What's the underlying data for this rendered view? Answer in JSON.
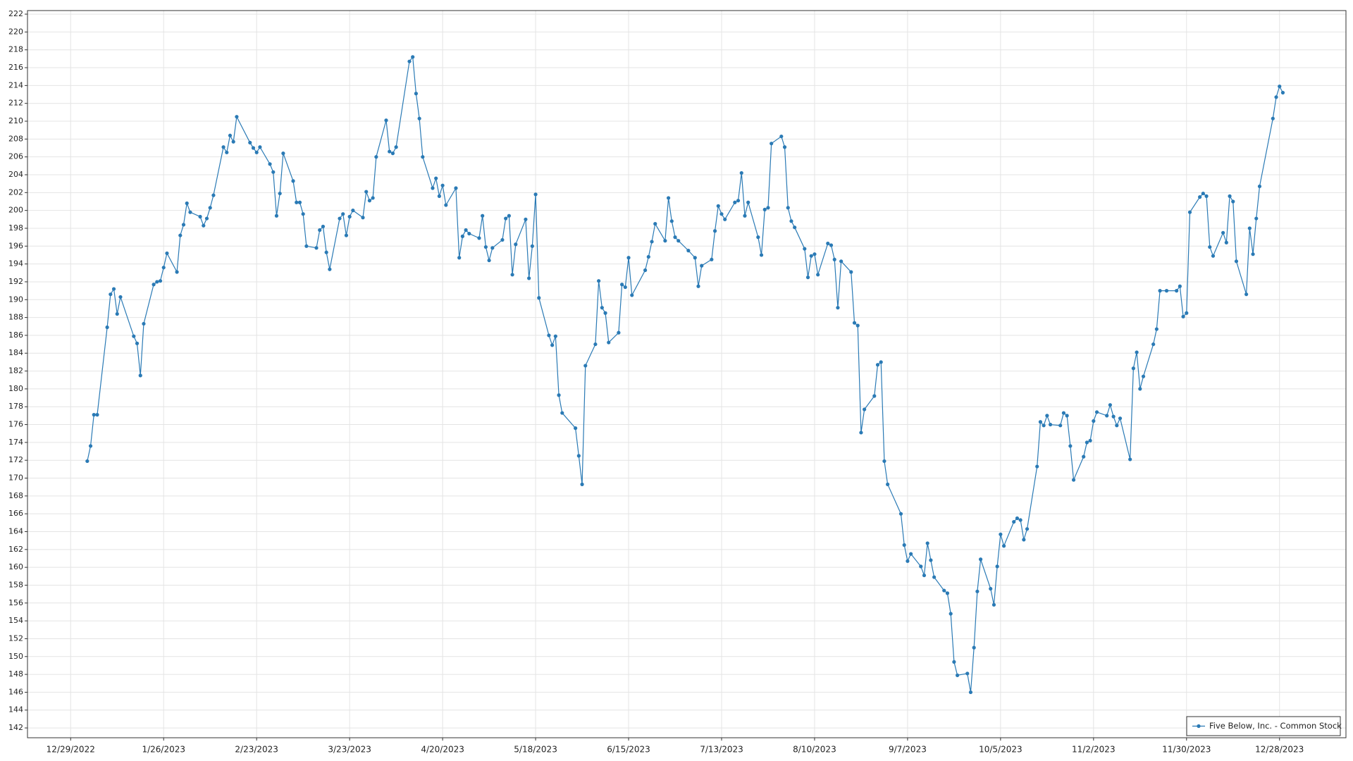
{
  "chart_data": {
    "type": "line",
    "legend": "lower right",
    "grid": true,
    "markers": true,
    "xlim": [
      "2022-12-16",
      "2024-01-17"
    ],
    "ylim": [
      140.9,
      222.4
    ],
    "xticks": [
      {
        "value": "2022-12-29",
        "label": "12/29/2022"
      },
      {
        "value": "2023-01-26",
        "label": "1/26/2023"
      },
      {
        "value": "2023-02-23",
        "label": "2/23/2023"
      },
      {
        "value": "2023-03-23",
        "label": "3/23/2023"
      },
      {
        "value": "2023-04-20",
        "label": "4/20/2023"
      },
      {
        "value": "2023-05-18",
        "label": "5/18/2023"
      },
      {
        "value": "2023-06-15",
        "label": "6/15/2023"
      },
      {
        "value": "2023-07-13",
        "label": "7/13/2023"
      },
      {
        "value": "2023-08-10",
        "label": "8/10/2023"
      },
      {
        "value": "2023-09-07",
        "label": "9/7/2023"
      },
      {
        "value": "2023-10-05",
        "label": "10/5/2023"
      },
      {
        "value": "2023-11-02",
        "label": "11/2/2023"
      },
      {
        "value": "2023-11-30",
        "label": "11/30/2023"
      },
      {
        "value": "2023-12-28",
        "label": "12/28/2023"
      }
    ],
    "yticks": [
      142,
      144,
      146,
      148,
      150,
      152,
      154,
      156,
      158,
      160,
      162,
      164,
      166,
      168,
      170,
      172,
      174,
      176,
      178,
      180,
      182,
      184,
      186,
      188,
      190,
      192,
      194,
      196,
      198,
      200,
      202,
      204,
      206,
      208,
      210,
      212,
      214,
      216,
      218,
      220,
      222
    ],
    "x": [
      "2023-01-03",
      "2023-01-04",
      "2023-01-05",
      "2023-01-06",
      "2023-01-09",
      "2023-01-10",
      "2023-01-11",
      "2023-01-12",
      "2023-01-13",
      "2023-01-17",
      "2023-01-18",
      "2023-01-19",
      "2023-01-20",
      "2023-01-23",
      "2023-01-24",
      "2023-01-25",
      "2023-01-26",
      "2023-01-27",
      "2023-01-30",
      "2023-01-31",
      "2023-02-01",
      "2023-02-02",
      "2023-02-03",
      "2023-02-06",
      "2023-02-07",
      "2023-02-08",
      "2023-02-09",
      "2023-02-10",
      "2023-02-13",
      "2023-02-14",
      "2023-02-15",
      "2023-02-16",
      "2023-02-17",
      "2023-02-21",
      "2023-02-22",
      "2023-02-23",
      "2023-02-24",
      "2023-02-27",
      "2023-02-28",
      "2023-03-01",
      "2023-03-02",
      "2023-03-03",
      "2023-03-06",
      "2023-03-07",
      "2023-03-08",
      "2023-03-09",
      "2023-03-10",
      "2023-03-13",
      "2023-03-14",
      "2023-03-15",
      "2023-03-16",
      "2023-03-17",
      "2023-03-20",
      "2023-03-21",
      "2023-03-22",
      "2023-03-23",
      "2023-03-24",
      "2023-03-27",
      "2023-03-28",
      "2023-03-29",
      "2023-03-30",
      "2023-03-31",
      "2023-04-03",
      "2023-04-04",
      "2023-04-05",
      "2023-04-06",
      "2023-04-10",
      "2023-04-11",
      "2023-04-12",
      "2023-04-13",
      "2023-04-14",
      "2023-04-17",
      "2023-04-18",
      "2023-04-19",
      "2023-04-20",
      "2023-04-21",
      "2023-04-24",
      "2023-04-25",
      "2023-04-26",
      "2023-04-27",
      "2023-04-28",
      "2023-05-01",
      "2023-05-02",
      "2023-05-03",
      "2023-05-04",
      "2023-05-05",
      "2023-05-08",
      "2023-05-09",
      "2023-05-10",
      "2023-05-11",
      "2023-05-12",
      "2023-05-15",
      "2023-05-16",
      "2023-05-17",
      "2023-05-18",
      "2023-05-19",
      "2023-05-22",
      "2023-05-23",
      "2023-05-24",
      "2023-05-25",
      "2023-05-26",
      "2023-05-30",
      "2023-05-31",
      "2023-06-01",
      "2023-06-02",
      "2023-06-05",
      "2023-06-06",
      "2023-06-07",
      "2023-06-08",
      "2023-06-09",
      "2023-06-12",
      "2023-06-13",
      "2023-06-14",
      "2023-06-15",
      "2023-06-16",
      "2023-06-20",
      "2023-06-21",
      "2023-06-22",
      "2023-06-23",
      "2023-06-26",
      "2023-06-27",
      "2023-06-28",
      "2023-06-29",
      "2023-06-30",
      "2023-07-03",
      "2023-07-05",
      "2023-07-06",
      "2023-07-07",
      "2023-07-10",
      "2023-07-11",
      "2023-07-12",
      "2023-07-13",
      "2023-07-14",
      "2023-07-17",
      "2023-07-18",
      "2023-07-19",
      "2023-07-20",
      "2023-07-21",
      "2023-07-24",
      "2023-07-25",
      "2023-07-26",
      "2023-07-27",
      "2023-07-28",
      "2023-07-31",
      "2023-08-01",
      "2023-08-02",
      "2023-08-03",
      "2023-08-04",
      "2023-08-07",
      "2023-08-08",
      "2023-08-09",
      "2023-08-10",
      "2023-08-11",
      "2023-08-14",
      "2023-08-15",
      "2023-08-16",
      "2023-08-17",
      "2023-08-18",
      "2023-08-21",
      "2023-08-22",
      "2023-08-23",
      "2023-08-24",
      "2023-08-25",
      "2023-08-28",
      "2023-08-29",
      "2023-08-30",
      "2023-08-31",
      "2023-09-01",
      "2023-09-05",
      "2023-09-06",
      "2023-09-07",
      "2023-09-08",
      "2023-09-11",
      "2023-09-12",
      "2023-09-13",
      "2023-09-14",
      "2023-09-15",
      "2023-09-18",
      "2023-09-19",
      "2023-09-20",
      "2023-09-21",
      "2023-09-22",
      "2023-09-25",
      "2023-09-26",
      "2023-09-27",
      "2023-09-28",
      "2023-09-29",
      "2023-10-02",
      "2023-10-03",
      "2023-10-04",
      "2023-10-05",
      "2023-10-06",
      "2023-10-09",
      "2023-10-10",
      "2023-10-11",
      "2023-10-12",
      "2023-10-13",
      "2023-10-16",
      "2023-10-17",
      "2023-10-18",
      "2023-10-19",
      "2023-10-20",
      "2023-10-23",
      "2023-10-24",
      "2023-10-25",
      "2023-10-26",
      "2023-10-27",
      "2023-10-30",
      "2023-10-31",
      "2023-11-01",
      "2023-11-02",
      "2023-11-03",
      "2023-11-06",
      "2023-11-07",
      "2023-11-08",
      "2023-11-09",
      "2023-11-10",
      "2023-11-13",
      "2023-11-14",
      "2023-11-15",
      "2023-11-16",
      "2023-11-17",
      "2023-11-20",
      "2023-11-21",
      "2023-11-22",
      "2023-11-24",
      "2023-11-27",
      "2023-11-28",
      "2023-11-29",
      "2023-11-30",
      "2023-12-01",
      "2023-12-04",
      "2023-12-05",
      "2023-12-06",
      "2023-12-07",
      "2023-12-08",
      "2023-12-11",
      "2023-12-12",
      "2023-12-13",
      "2023-12-14",
      "2023-12-15",
      "2023-12-18",
      "2023-12-19",
      "2023-12-20",
      "2023-12-21",
      "2023-12-22",
      "2023-12-26",
      "2023-12-27",
      "2023-12-28",
      "2023-12-29"
    ],
    "series": [
      {
        "name": "Five Below, Inc. - Common Stock",
        "color": "#2a7ab5",
        "values": [
          171.9,
          173.6,
          177.1,
          177.1,
          186.9,
          190.6,
          191.2,
          188.4,
          190.3,
          185.9,
          185.1,
          181.5,
          187.3,
          191.7,
          192.0,
          192.1,
          193.6,
          195.2,
          193.1,
          197.2,
          198.4,
          200.8,
          199.8,
          199.3,
          198.3,
          199.1,
          200.3,
          201.7,
          207.1,
          206.5,
          208.4,
          207.7,
          210.5,
          207.6,
          207.0,
          206.5,
          207.1,
          205.2,
          204.3,
          199.4,
          201.9,
          206.4,
          203.3,
          200.9,
          200.9,
          199.6,
          196.0,
          195.8,
          197.8,
          198.2,
          195.3,
          193.4,
          199.1,
          199.6,
          197.2,
          199.3,
          200.0,
          199.2,
          202.1,
          201.1,
          201.4,
          206.0,
          210.1,
          206.6,
          206.4,
          207.1,
          216.7,
          217.2,
          213.1,
          210.3,
          206.0,
          202.5,
          203.6,
          201.6,
          202.8,
          200.6,
          202.5,
          194.7,
          197.1,
          197.8,
          197.4,
          196.9,
          199.4,
          195.9,
          194.4,
          195.8,
          196.7,
          199.1,
          199.4,
          192.8,
          196.2,
          199.0,
          192.4,
          196.0,
          201.8,
          190.2,
          186.0,
          184.9,
          185.9,
          179.3,
          177.3,
          175.6,
          172.5,
          169.3,
          182.6,
          185.0,
          192.1,
          189.1,
          188.5,
          185.2,
          186.3,
          191.7,
          191.4,
          194.7,
          190.5,
          193.3,
          194.8,
          196.5,
          198.5,
          196.6,
          201.4,
          198.8,
          197.0,
          196.6,
          195.5,
          194.7,
          191.5,
          193.8,
          194.5,
          197.7,
          200.5,
          199.6,
          199.0,
          200.9,
          201.1,
          204.2,
          199.4,
          200.9,
          197.0,
          195.0,
          200.1,
          200.3,
          207.5,
          208.3,
          207.1,
          200.3,
          198.8,
          198.1,
          195.7,
          192.5,
          194.9,
          195.1,
          192.8,
          196.3,
          196.1,
          194.5,
          189.1,
          194.3,
          193.1,
          187.4,
          187.1,
          175.1,
          177.7,
          179.2,
          182.7,
          183.0,
          171.9,
          169.3,
          166.0,
          162.5,
          160.7,
          161.5,
          160.1,
          159.1,
          162.7,
          160.8,
          158.9,
          157.4,
          157.1,
          154.8,
          149.4,
          147.9,
          148.1,
          146.0,
          151.0,
          157.3,
          160.9,
          157.6,
          155.8,
          160.1,
          163.7,
          162.4,
          165.1,
          165.5,
          165.3,
          163.1,
          164.3,
          171.3,
          176.3,
          175.9,
          177.0,
          176.0,
          175.9,
          177.3,
          177.0,
          173.6,
          169.8,
          172.4,
          174.0,
          174.2,
          176.4,
          177.4,
          177.0,
          178.2,
          176.9,
          175.9,
          176.7,
          172.1,
          182.3,
          184.1,
          180.0,
          181.4,
          185.0,
          186.7,
          191.0,
          191.0,
          191.0,
          191.5,
          188.1,
          188.5,
          199.8,
          201.5,
          201.9,
          201.6,
          195.9,
          194.9,
          197.5,
          196.4,
          201.6,
          201.0,
          194.3,
          190.6,
          198.0,
          195.1,
          199.1,
          202.7,
          210.3,
          212.7,
          213.9,
          213.2
        ]
      }
    ]
  }
}
